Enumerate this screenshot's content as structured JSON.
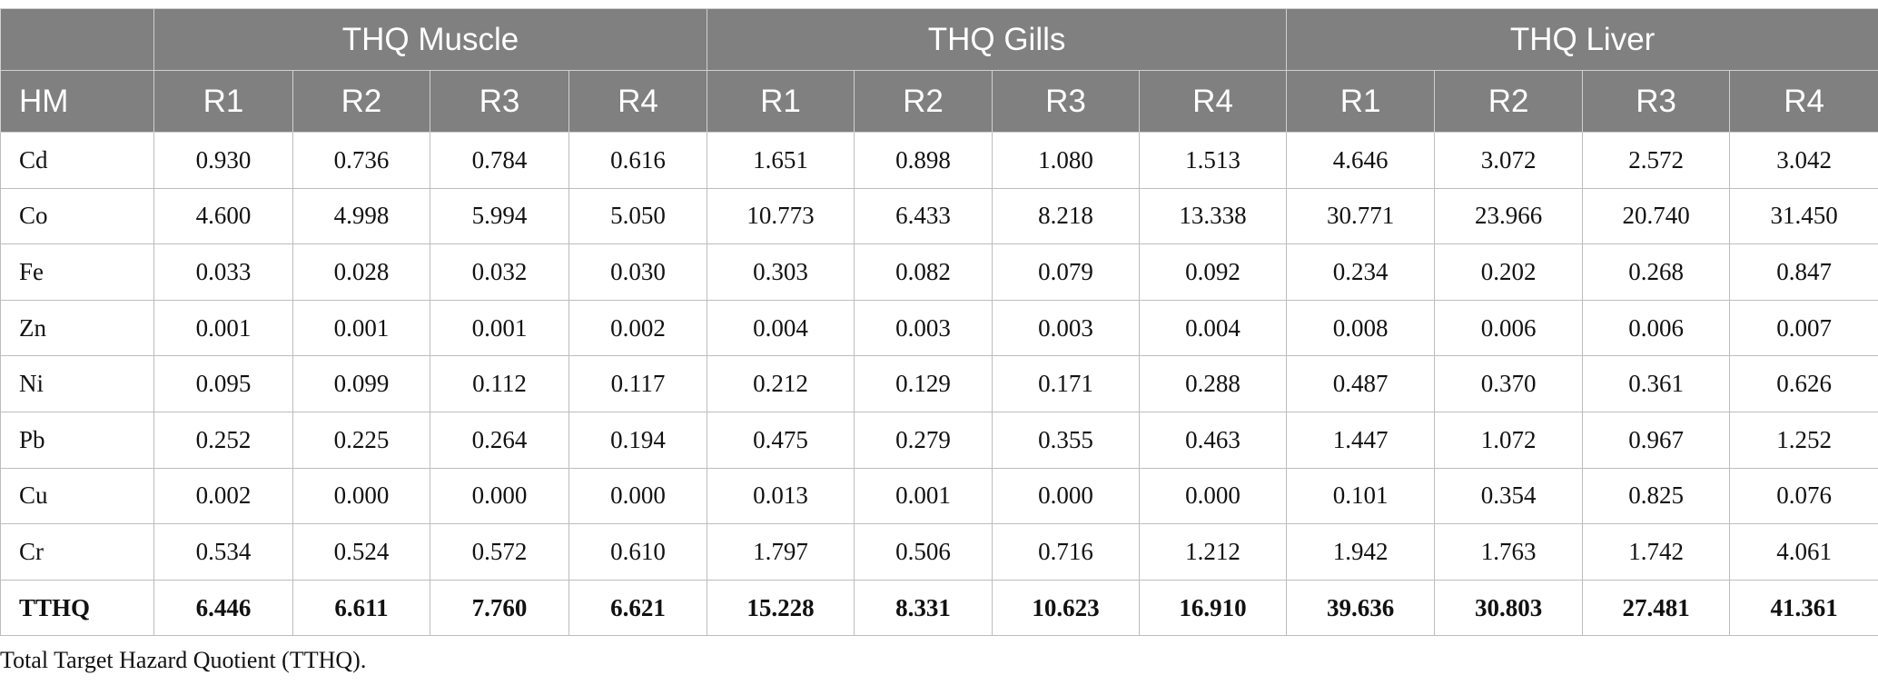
{
  "table": {
    "groups": [
      "THQ Muscle",
      "THQ Gills",
      "THQ Liver"
    ],
    "header": [
      "HM",
      "R1",
      "R2",
      "R3",
      "R4",
      "R1",
      "R2",
      "R3",
      "R4",
      "R1",
      "R2",
      "R3",
      "R4"
    ],
    "rows": [
      [
        "Cd",
        "0.930",
        "0.736",
        "0.784",
        "0.616",
        "1.651",
        "0.898",
        "1.080",
        "1.513",
        "4.646",
        "3.072",
        "2.572",
        "3.042"
      ],
      [
        "Co",
        "4.600",
        "4.998",
        "5.994",
        "5.050",
        "10.773",
        "6.433",
        "8.218",
        "13.338",
        "30.771",
        "23.966",
        "20.740",
        "31.450"
      ],
      [
        "Fe",
        "0.033",
        "0.028",
        "0.032",
        "0.030",
        "0.303",
        "0.082",
        "0.079",
        "0.092",
        "0.234",
        "0.202",
        "0.268",
        "0.847"
      ],
      [
        "Zn",
        "0.001",
        "0.001",
        "0.001",
        "0.002",
        "0.004",
        "0.003",
        "0.003",
        "0.004",
        "0.008",
        "0.006",
        "0.006",
        "0.007"
      ],
      [
        "Ni",
        "0.095",
        "0.099",
        "0.112",
        "0.117",
        "0.212",
        "0.129",
        "0.171",
        "0.288",
        "0.487",
        "0.370",
        "0.361",
        "0.626"
      ],
      [
        "Pb",
        "0.252",
        "0.225",
        "0.264",
        "0.194",
        "0.475",
        "0.279",
        "0.355",
        "0.463",
        "1.447",
        "1.072",
        "0.967",
        "1.252"
      ],
      [
        "Cu",
        "0.002",
        "0.000",
        "0.000",
        "0.000",
        "0.013",
        "0.001",
        "0.000",
        "0.000",
        "0.101",
        "0.354",
        "0.825",
        "0.076"
      ],
      [
        "Cr",
        "0.534",
        "0.524",
        "0.572",
        "0.610",
        "1.797",
        "0.506",
        "0.716",
        "1.212",
        "1.942",
        "1.763",
        "1.742",
        "4.061"
      ],
      [
        "TTHQ",
        "6.446",
        "6.611",
        "7.760",
        "6.621",
        "15.228",
        "8.331",
        "10.623",
        "16.910",
        "39.636",
        "30.803",
        "27.481",
        "41.361"
      ]
    ]
  },
  "caption": "Total Target Hazard Quotient (TTHQ)."
}
